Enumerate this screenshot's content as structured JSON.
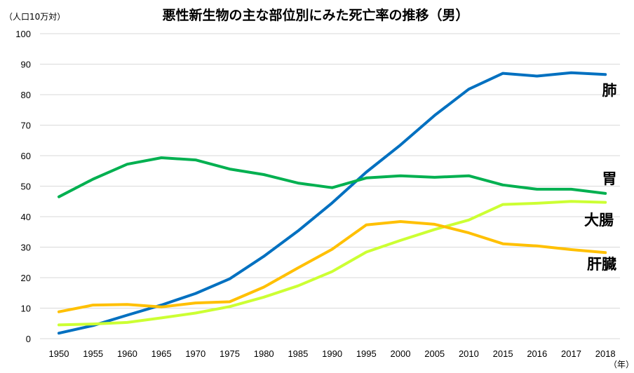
{
  "chart_data": {
    "type": "line",
    "title": "悪性新生物の主な部位別にみた死亡率の推移（男）",
    "ylabel": "（人口10万対）",
    "xlabel": "（年）",
    "ylim": [
      0,
      100
    ],
    "yticks": [
      0,
      10,
      20,
      30,
      40,
      50,
      60,
      70,
      80,
      90,
      100
    ],
    "grid": true,
    "legend": "none",
    "categories": [
      "1950",
      "1955",
      "1960",
      "1965",
      "1970",
      "1975",
      "1980",
      "1985",
      "1990",
      "1995",
      "2000",
      "2005",
      "2010",
      "2015",
      "2016",
      "2017",
      "2018"
    ],
    "series": [
      {
        "name": "肺",
        "color": "#0070C0",
        "values": [
          1.8,
          4.3,
          7.7,
          11.0,
          14.8,
          19.6,
          27.0,
          35.3,
          44.5,
          54.6,
          63.5,
          73.2,
          81.8,
          87.0,
          86.1,
          87.2,
          86.6
        ]
      },
      {
        "name": "胃",
        "color": "#00B050",
        "values": [
          46.5,
          52.3,
          57.2,
          59.3,
          58.6,
          55.6,
          53.8,
          51.0,
          49.5,
          52.7,
          53.4,
          52.9,
          53.4,
          50.4,
          49.0,
          49.0,
          47.6
        ]
      },
      {
        "name": "大腸",
        "color": "#CCFF33",
        "values": [
          4.5,
          4.8,
          5.3,
          6.8,
          8.4,
          10.5,
          13.6,
          17.3,
          22.0,
          28.4,
          32.2,
          35.8,
          38.9,
          44.0,
          44.4,
          45.0,
          44.7
        ]
      },
      {
        "name": "肝臓",
        "color": "#FFC000",
        "values": [
          8.8,
          11.0,
          11.2,
          10.4,
          11.7,
          12.1,
          16.9,
          23.2,
          29.3,
          37.3,
          38.4,
          37.5,
          34.7,
          31.1,
          30.4,
          29.2,
          28.2
        ]
      }
    ]
  }
}
